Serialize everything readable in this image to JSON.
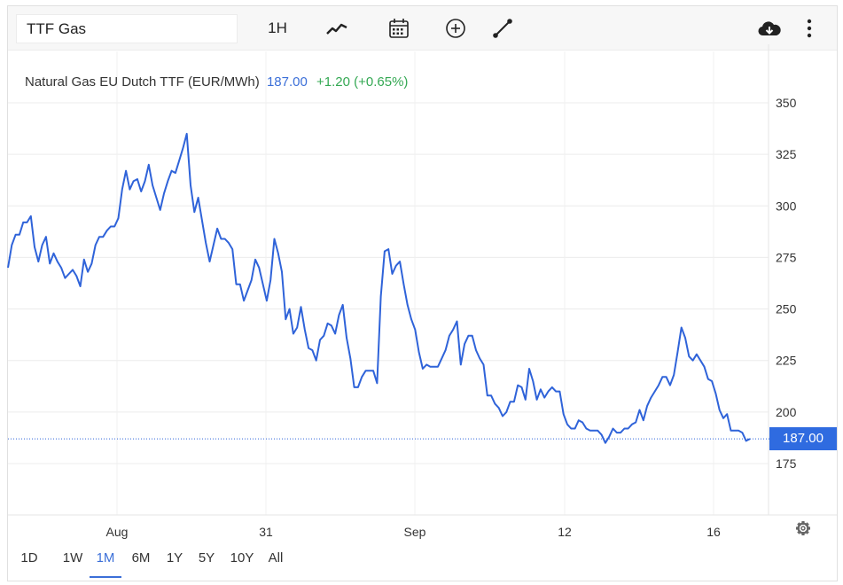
{
  "toolbar": {
    "symbol_value": "TTF Gas",
    "interval_label": "1H",
    "icons": [
      "chart-type-icon",
      "calendar-icon",
      "add-indicator-icon",
      "draw-line-icon",
      "download-icon",
      "more-vert-icon"
    ]
  },
  "legend": {
    "name": "Natural Gas EU Dutch TTF (EUR/MWh)",
    "price": "187.00",
    "change": "+1.20 (+0.65%)"
  },
  "price_tag": "187.00",
  "ranges": [
    "1D",
    "1W",
    "1M",
    "6M",
    "1Y",
    "5Y",
    "10Y",
    "All"
  ],
  "active_range": "1M",
  "colors": {
    "line": "#2f63d9",
    "positive": "#34a853",
    "price_tag_bg": "#2f6be0"
  },
  "chart_data": {
    "type": "line",
    "title": "Natural Gas EU Dutch TTF (EUR/MWh)",
    "xlabel": "",
    "ylabel": "",
    "x_tick_labels": [
      "Aug",
      "31",
      "Sep",
      "12",
      "16"
    ],
    "y_ticks": [
      175,
      200,
      225,
      250,
      275,
      300,
      325,
      350
    ],
    "ylim": [
      154,
      362
    ],
    "grid": true,
    "last_price": 187.0,
    "series": [
      {
        "values": [
          270,
          281,
          286,
          286,
          292,
          292,
          295,
          280,
          273,
          281,
          285,
          272,
          277,
          273,
          270,
          265,
          267,
          269,
          266,
          261,
          274,
          268,
          272,
          281,
          285,
          285,
          288,
          290,
          290,
          294,
          308,
          317,
          308,
          312,
          313,
          307,
          312,
          320,
          310,
          304,
          298,
          306,
          312,
          317,
          316,
          322,
          328,
          335,
          310,
          297,
          304,
          293,
          282,
          273,
          281,
          289,
          284,
          284,
          282,
          279,
          262,
          262,
          254,
          259,
          264,
          274,
          270,
          262,
          254,
          264,
          284,
          277,
          268,
          245,
          250,
          238,
          241,
          251,
          240,
          231,
          230,
          225,
          235,
          237,
          243,
          242,
          238,
          247,
          252,
          236,
          226,
          212,
          212,
          217,
          220,
          220,
          220,
          214,
          256,
          278,
          279,
          267,
          271,
          273,
          262,
          252,
          245,
          240,
          229,
          221,
          223,
          222,
          222,
          222,
          226,
          230,
          237,
          240,
          244,
          223,
          233,
          237,
          237,
          230,
          226,
          223,
          208,
          208,
          204,
          202,
          198,
          200,
          205,
          205,
          213,
          212,
          206,
          221,
          215,
          206,
          211,
          207,
          210,
          212,
          210,
          210,
          199,
          194,
          192,
          192,
          196,
          195,
          192,
          191,
          191,
          191,
          189,
          185,
          188,
          192,
          190,
          190,
          192,
          192,
          194,
          195,
          201,
          196,
          203,
          207,
          210,
          213,
          217,
          217,
          213,
          218,
          229,
          241,
          236,
          227,
          225,
          228,
          225,
          222,
          216,
          215,
          209,
          201,
          197,
          199,
          191,
          191,
          191,
          190,
          186,
          187
        ]
      }
    ]
  }
}
